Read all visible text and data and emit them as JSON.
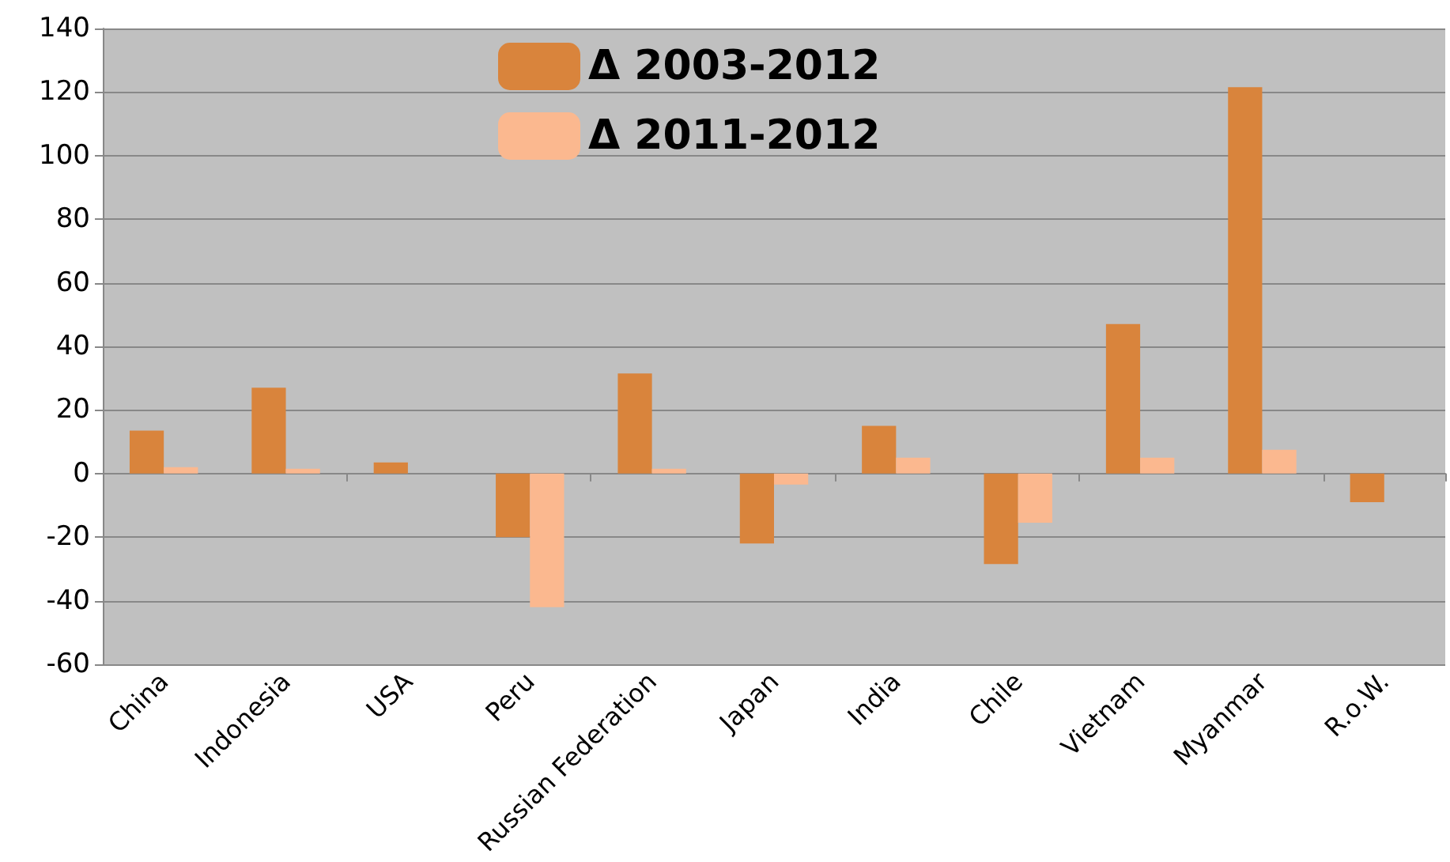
{
  "chart_data": {
    "type": "bar",
    "categories": [
      "China",
      "Indonesia",
      "USA",
      "Peru",
      "Russian Federation",
      "Japan",
      "India",
      "Chile",
      "Vietnam",
      "Myanmar",
      "R.o.W."
    ],
    "series": [
      {
        "name": "Δ 2003-2012",
        "color": "#d9843c",
        "values": [
          13.5,
          27,
          3.5,
          -20,
          31.5,
          -22,
          15,
          -28.5,
          47,
          121.5,
          -9
        ]
      },
      {
        "name": "Δ 2011-2012",
        "color": "#fbb88f",
        "values": [
          2,
          1.5,
          null,
          -42,
          1.5,
          -3.5,
          5,
          -15.5,
          5,
          7.5,
          null
        ]
      }
    ],
    "ylim": [
      -60,
      140
    ],
    "yticks": [
      -60,
      -40,
      -20,
      0,
      20,
      40,
      60,
      80,
      100,
      120,
      140
    ],
    "grid": "y",
    "legend": "top"
  }
}
